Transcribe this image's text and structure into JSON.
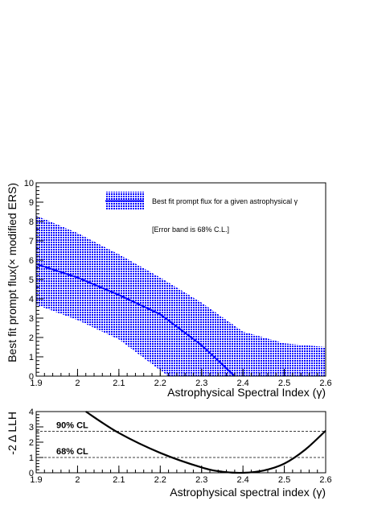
{
  "colors": {
    "band": "#0000ff",
    "line": "#0000ff",
    "llh_curve": "#000000",
    "axes": "#000000"
  },
  "chart_data": [
    {
      "type": "area",
      "title": "",
      "xlabel": "Astrophysical Spectral Index (γ)",
      "ylabel": "Best fit prompt flux(× modified ERS)",
      "xlim": [
        1.9,
        2.6
      ],
      "ylim": [
        0,
        10
      ],
      "xticks": [
        "1.9",
        "2",
        "2.1",
        "2.2",
        "2.3",
        "2.4",
        "2.5",
        "2.6"
      ],
      "yticks": [
        "0",
        "1",
        "2",
        "3",
        "4",
        "5",
        "6",
        "7",
        "8",
        "9",
        "10"
      ],
      "grid": false,
      "legend": {
        "placement": "top-right",
        "entry": "Best fit prompt flux for a given astrophysical γ",
        "note": "[Error band is 68% C.L.]"
      },
      "series": [
        {
          "name": "Best fit prompt flux for a given astrophysical γ",
          "x": [
            1.9,
            2.0,
            2.1,
            2.2,
            2.3,
            2.38
          ],
          "y": [
            5.8,
            5.1,
            4.2,
            3.2,
            1.6,
            0.0
          ]
        }
      ],
      "band": {
        "x": [
          1.9,
          2.0,
          2.1,
          2.2,
          2.3,
          2.4,
          2.5,
          2.6
        ],
        "upper": [
          8.3,
          7.4,
          6.3,
          5.1,
          3.8,
          2.3,
          1.7,
          1.5
        ],
        "x_lower": [
          1.9,
          2.0,
          2.1,
          2.2,
          2.22
        ],
        "lower": [
          3.7,
          2.9,
          1.9,
          0.3,
          0.0
        ]
      }
    },
    {
      "type": "line",
      "title": "",
      "xlabel": "Astrophysical spectral index (γ)",
      "ylabel": "-2 Δ LLH",
      "xlim": [
        1.9,
        2.6
      ],
      "ylim": [
        0,
        4
      ],
      "xticks": [
        "1.9",
        "2",
        "2.1",
        "2.2",
        "2.3",
        "2.4",
        "2.5",
        "2.6"
      ],
      "yticks": [
        "0",
        "1",
        "2",
        "3",
        "4"
      ],
      "grid": false,
      "series": [
        {
          "x": [
            2.02,
            2.1,
            2.2,
            2.3,
            2.35,
            2.4,
            2.45,
            2.5,
            2.55,
            2.6
          ],
          "y": [
            4.0,
            2.6,
            1.3,
            0.35,
            0.07,
            0.0,
            0.15,
            0.6,
            1.5,
            2.75
          ]
        }
      ],
      "reference_lines": [
        {
          "label": "90% CL",
          "y": 2.71
        },
        {
          "label": "68% CL",
          "y": 1.0
        }
      ]
    }
  ]
}
